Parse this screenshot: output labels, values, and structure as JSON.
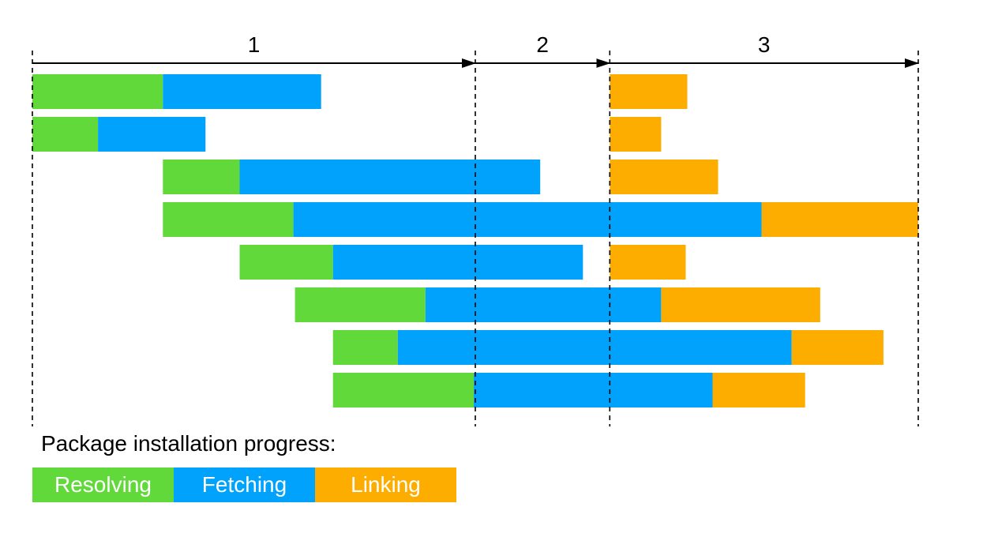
{
  "phases": [
    {
      "label": "1",
      "start": 0,
      "end": 5.6
    },
    {
      "label": "2",
      "start": 5.6,
      "end": 7.3
    },
    {
      "label": "3",
      "start": 7.3,
      "end": 11.2
    }
  ],
  "timeline": {
    "boundaries": [
      0,
      5.6,
      7.3,
      11.2
    ],
    "max": 11.2
  },
  "colors": {
    "resolving": "#62d93b",
    "fetching": "#00a2fc",
    "linking": "#fdac00"
  },
  "packages": [
    {
      "resolving": [
        0.0,
        1.65
      ],
      "fetching": [
        1.65,
        3.65
      ],
      "linking": [
        7.3,
        8.28
      ]
    },
    {
      "resolving": [
        0.0,
        0.83
      ],
      "fetching": [
        0.83,
        2.19
      ],
      "linking": [
        7.3,
        7.95
      ]
    },
    {
      "resolving": [
        1.65,
        2.62
      ],
      "fetching": [
        2.62,
        6.42
      ],
      "linking": [
        7.3,
        8.67
      ]
    },
    {
      "resolving": [
        1.65,
        3.3
      ],
      "fetching": [
        3.3,
        9.22
      ],
      "linking": [
        9.22,
        11.2
      ]
    },
    {
      "resolving": [
        2.62,
        3.8
      ],
      "fetching": [
        3.8,
        6.96
      ],
      "linking": [
        7.3,
        8.26
      ]
    },
    {
      "resolving": [
        3.32,
        4.97
      ],
      "fetching": [
        4.97,
        7.95
      ],
      "linking": [
        7.95,
        9.96
      ]
    },
    {
      "resolving": [
        3.8,
        4.62
      ],
      "fetching": [
        4.62,
        9.6
      ],
      "linking": [
        9.6,
        10.76
      ]
    },
    {
      "resolving": [
        3.8,
        5.58
      ],
      "fetching": [
        5.58,
        8.6
      ],
      "linking": [
        8.6,
        9.77
      ]
    }
  ],
  "legend": {
    "title": "Package installation progress:",
    "items": [
      {
        "key": "resolving",
        "label": "Resolving"
      },
      {
        "key": "fetching",
        "label": "Fetching"
      },
      {
        "key": "linking",
        "label": "Linking"
      }
    ]
  }
}
